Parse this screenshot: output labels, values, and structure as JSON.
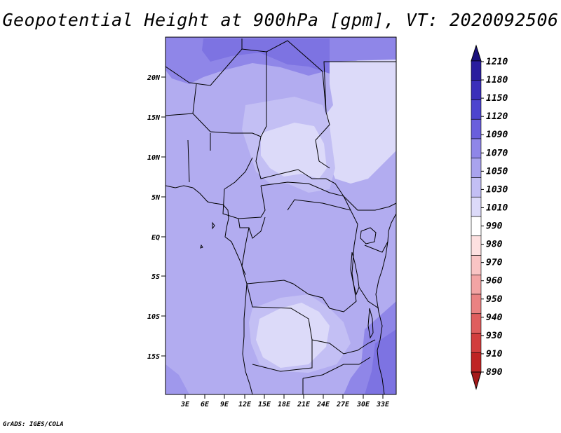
{
  "title": "Geopotential Height at 900hPa [gpm], VT: 2020092506",
  "credit": "GrADS: IGES/COLA",
  "map": {
    "lat_labels": [
      "20N",
      "15N",
      "10N",
      "5N",
      "EQ",
      "5S",
      "10S",
      "15S"
    ],
    "lon_labels": [
      "3E",
      "6E",
      "9E",
      "12E",
      "15E",
      "18E",
      "21E",
      "24E",
      "27E",
      "30E",
      "33E"
    ]
  },
  "colorbar": {
    "levels": [
      "1210",
      "1180",
      "1150",
      "1120",
      "1090",
      "1070",
      "1050",
      "1030",
      "1010",
      "990",
      "980",
      "970",
      "960",
      "950",
      "940",
      "930",
      "910",
      "890"
    ],
    "colors": [
      "#1a117c",
      "#2a1d9e",
      "#3b2fba",
      "#4d44cf",
      "#6a5fdc",
      "#8f86e8",
      "#a9a3ee",
      "#c3bff4",
      "#dcdaf9",
      "#ffffff",
      "#fde0e0",
      "#f9c4c4",
      "#f3a4a4",
      "#ea8282",
      "#df5e5e",
      "#d23e3e",
      "#bf2424",
      "#a51a1a"
    ]
  },
  "shading": {
    "background": "#b2acf0",
    "light": "#dcdaf9",
    "medium": "#c3bff4",
    "dark": "#8f86e8",
    "darker": "#6a5fdc"
  }
}
